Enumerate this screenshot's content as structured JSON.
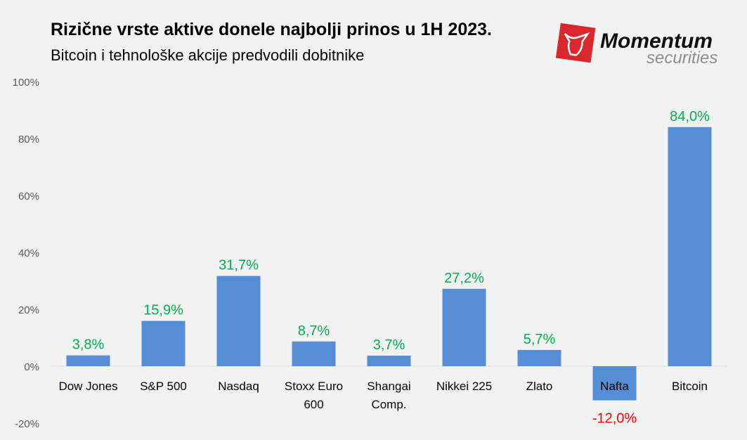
{
  "chart_data": {
    "type": "bar",
    "title": "Rizične vrste aktive donele najbolji prinos u 1H 2023.",
    "subtitle": "Bitcoin i tehnološke akcije predvodili dobitnike",
    "categories": [
      [
        "Dow Jones"
      ],
      [
        "S&P 500"
      ],
      [
        "Nasdaq"
      ],
      [
        "Stoxx Euro",
        "600"
      ],
      [
        "Shangai",
        "Comp."
      ],
      [
        "Nikkei 225"
      ],
      [
        "Zlato"
      ],
      [
        "Nafta"
      ],
      [
        "Bitcoin"
      ]
    ],
    "values": [
      3.8,
      15.9,
      31.7,
      8.7,
      3.7,
      27.2,
      5.7,
      -12.0,
      84.0
    ],
    "data_labels": [
      "3,8%",
      "15,9%",
      "31,7%",
      "8,7%",
      "3,7%",
      "27,2%",
      "5,7%",
      "-12,0%",
      "84,0%"
    ],
    "y_ticks": [
      -20,
      0,
      20,
      40,
      60,
      80,
      100
    ],
    "y_tick_labels": [
      "-20%",
      "0%",
      "20%",
      "40%",
      "60%",
      "80%",
      "100%"
    ],
    "ylim": [
      -20,
      100
    ],
    "grid": false,
    "xlabel": "",
    "ylabel": "",
    "colors": {
      "bar": "#558ed5",
      "positive_label": "#00b050",
      "negative_label": "#ff0000",
      "axis_text": "#595959"
    }
  },
  "logo": {
    "name": "Momentum",
    "tagline": "securities"
  }
}
